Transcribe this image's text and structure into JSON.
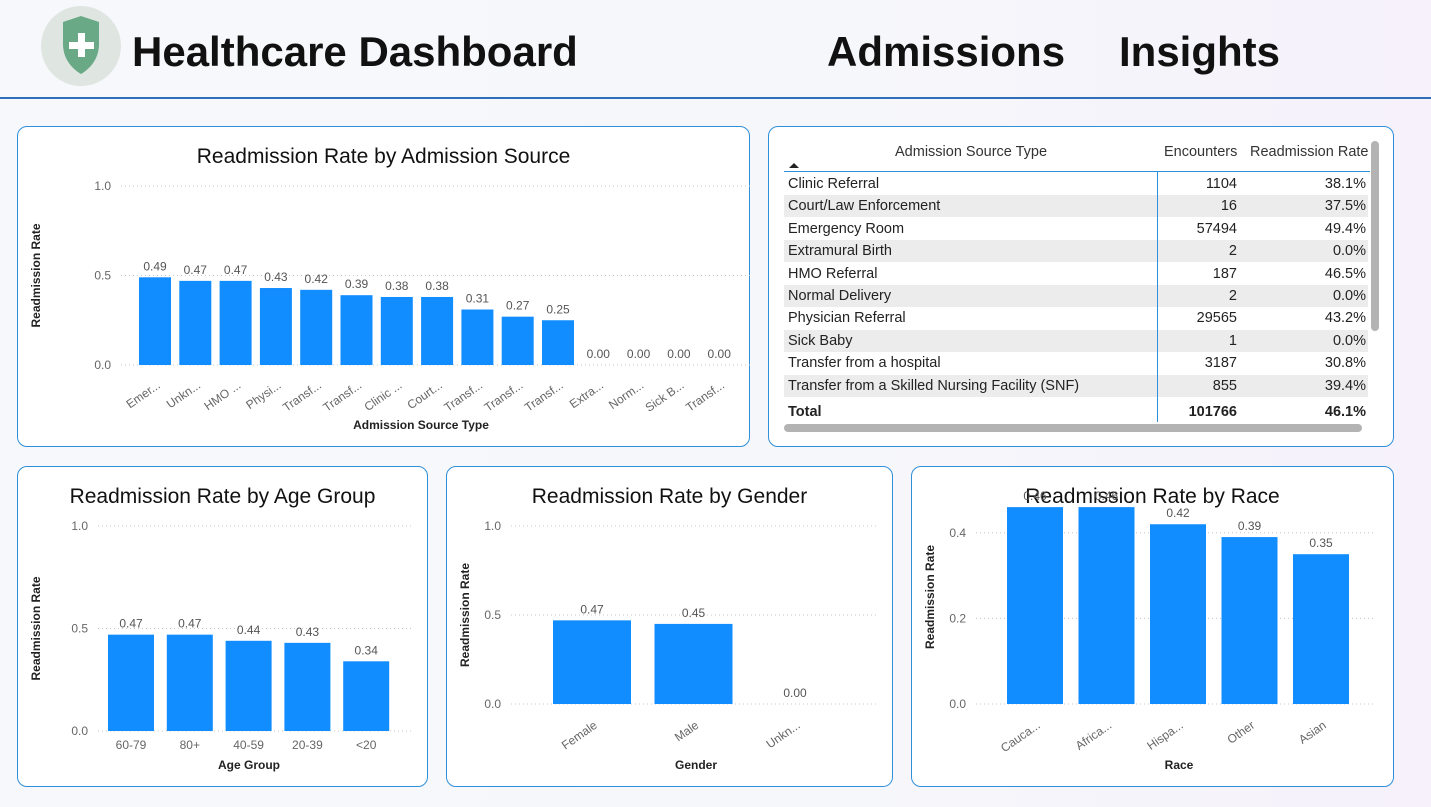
{
  "header": {
    "title": "Healthcare Dashboard",
    "nav1": "Admissions",
    "nav2": "Insights"
  },
  "colors": {
    "bar": "#118dff",
    "accent": "#2f8fd8",
    "logo_shield": "#6aa985"
  },
  "icons": {
    "logo": "shield-plus-icon",
    "sort": "sort-up-icon"
  },
  "table": {
    "headers": [
      "Admission Source Type",
      "Encounters",
      "Readmission Rate"
    ],
    "rows": [
      [
        "Clinic Referral",
        "1104",
        "38.1%"
      ],
      [
        "Court/Law Enforcement",
        "16",
        "37.5%"
      ],
      [
        "Emergency Room",
        "57494",
        "49.4%"
      ],
      [
        "Extramural Birth",
        "2",
        "0.0%"
      ],
      [
        "HMO Referral",
        "187",
        "46.5%"
      ],
      [
        "Normal Delivery",
        "2",
        "0.0%"
      ],
      [
        "Physician Referral",
        "29565",
        "43.2%"
      ],
      [
        "Sick Baby",
        "1",
        "0.0%"
      ],
      [
        "Transfer from a hospital",
        "3187",
        "30.8%"
      ],
      [
        "Transfer from a Skilled Nursing Facility (SNF)",
        "855",
        "39.4%"
      ]
    ],
    "total": [
      "Total",
      "101766",
      "46.1%"
    ]
  },
  "chart_data": [
    {
      "id": "source",
      "type": "bar",
      "title": "Readmission Rate by Admission Source",
      "xlabel": "Admission Source Type",
      "ylabel": "Readmission Rate",
      "ylim": [
        0,
        1
      ],
      "yticks": [
        "0.0",
        "0.5",
        "1.0"
      ],
      "categories": [
        "Emer...",
        "Unkn...",
        "HMO ...",
        "Physi...",
        "Transf...",
        "Transf...",
        "Clinic ...",
        "Court...",
        "Transf...",
        "Transf...",
        "Transf...",
        "Extra...",
        "Norm...",
        "Sick B...",
        "Transf..."
      ],
      "values": [
        0.49,
        0.47,
        0.47,
        0.43,
        0.42,
        0.39,
        0.38,
        0.38,
        0.31,
        0.27,
        0.25,
        0.0,
        0.0,
        0.0,
        0.0
      ],
      "labels": [
        "0.49",
        "0.47",
        "0.47",
        "0.43",
        "0.42",
        "0.39",
        "0.38",
        "0.38",
        "0.31",
        "0.27",
        "0.25",
        "0.00",
        "0.00",
        "0.00",
        "0.00"
      ],
      "grid": true,
      "rotated_labels": true
    },
    {
      "id": "age",
      "type": "bar",
      "title": "Readmission Rate by Age Group",
      "xlabel": "Age Group",
      "ylabel": "Readmission Rate",
      "ylim": [
        0,
        1
      ],
      "yticks": [
        "0.0",
        "0.5",
        "1.0"
      ],
      "categories": [
        "60-79",
        "80+",
        "40-59",
        "20-39",
        "<20"
      ],
      "values": [
        0.47,
        0.47,
        0.44,
        0.43,
        0.34
      ],
      "labels": [
        "0.47",
        "0.47",
        "0.44",
        "0.43",
        "0.34"
      ],
      "grid": true,
      "rotated_labels": false
    },
    {
      "id": "gender",
      "type": "bar",
      "title": "Readmission Rate by Gender",
      "xlabel": "Gender",
      "ylabel": "Readmission Rate",
      "ylim": [
        0,
        1
      ],
      "yticks": [
        "0.0",
        "0.5",
        "1.0"
      ],
      "categories": [
        "Female",
        "Male",
        "Unkn..."
      ],
      "values": [
        0.47,
        0.45,
        0.0
      ],
      "labels": [
        "0.47",
        "0.45",
        "0.00"
      ],
      "grid": true,
      "rotated_labels": true
    },
    {
      "id": "race",
      "type": "bar",
      "title": "Readmission Rate by Race",
      "xlabel": "Race",
      "ylabel": "Readmission Rate",
      "ylim": [
        0,
        0.5
      ],
      "yticks": [
        "0.0",
        "0.2",
        "0.4"
      ],
      "ytick_values": [
        0,
        0.2,
        0.4
      ],
      "categories": [
        "Cauca...",
        "Africa...",
        "Hispa...",
        "Other",
        "Asian"
      ],
      "values": [
        0.46,
        0.46,
        0.42,
        0.39,
        0.35
      ],
      "labels": [
        "0.46",
        "0.46",
        "0.42",
        "0.39",
        "0.35"
      ],
      "grid": true,
      "rotated_labels": true
    }
  ]
}
